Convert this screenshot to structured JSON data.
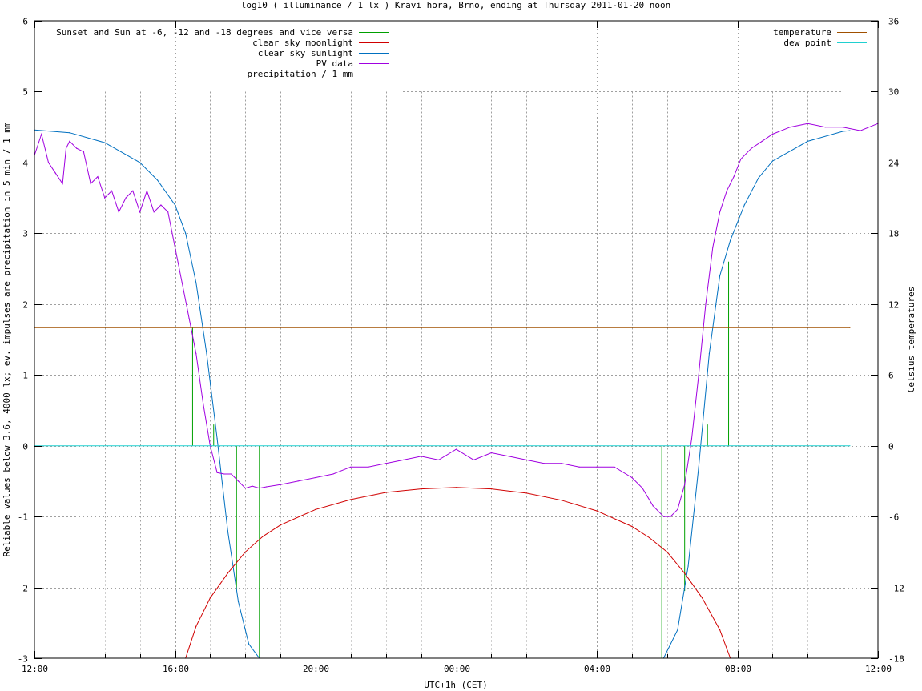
{
  "chart_data": {
    "type": "line",
    "title": "log10 ( illuminance / 1 lx ) Kravi hora, Brno, ending at Thursday 2011-01-20 noon",
    "xlabel": "UTC+1h (CET)",
    "ylabel": "Reliable values below 3.6, 4000 lx; ev. impulses are precipitation in 5 min / 1 mm",
    "y2label": "Celsius temperatures",
    "x_unit": "hours from 2011-01-19 12:00 (CET)",
    "xlim": [
      0,
      24
    ],
    "ylim": [
      -3,
      6
    ],
    "y2lim": [
      -18,
      36
    ],
    "grid": true,
    "x_ticks": [
      {
        "x": 0,
        "label": "12:00"
      },
      {
        "x": 4,
        "label": "16:00"
      },
      {
        "x": 8,
        "label": "20:00"
      },
      {
        "x": 12,
        "label": "00:00"
      },
      {
        "x": 16,
        "label": "04:00"
      },
      {
        "x": 20,
        "label": "08:00"
      },
      {
        "x": 24,
        "label": "12:00"
      }
    ],
    "y_ticks": [
      -3,
      -2,
      -1,
      0,
      1,
      2,
      3,
      4,
      5,
      6
    ],
    "y2_ticks": [
      -18,
      -12,
      -6,
      0,
      6,
      12,
      18,
      24,
      30,
      36
    ],
    "legend_left": {
      "placement": "top-left",
      "entries": [
        {
          "name": "Sunset and Sun at -6, -12 and -18 degrees and vice versa",
          "color": "#00a000"
        },
        {
          "name": "clear sky moonlight",
          "color": "#d00000"
        },
        {
          "name": "clear sky sunlight",
          "color": "#0070c0"
        },
        {
          "name": "PV data",
          "color": "#a000e0"
        },
        {
          "name": "precipitation / 1 mm",
          "color": "#e0a000"
        }
      ]
    },
    "legend_right": {
      "placement": "top-right",
      "entries": [
        {
          "name": "temperature",
          "color": "#a05000"
        },
        {
          "name": "dew point",
          "color": "#20d0d0"
        }
      ]
    },
    "sun_event_impulses": [
      {
        "x": 4.5,
        "y": 1.67
      },
      {
        "x": 5.1,
        "y": 0.3
      },
      {
        "x": 5.75,
        "y": -2.05
      },
      {
        "x": 6.4,
        "y": -3.0
      },
      {
        "x": 17.85,
        "y": -3.0
      },
      {
        "x": 18.5,
        "y": -2.05
      },
      {
        "x": 19.15,
        "y": 0.3
      },
      {
        "x": 19.75,
        "y": 2.6
      }
    ],
    "series": [
      {
        "name": "clear sky sunlight",
        "x": [
          0,
          1,
          2,
          3,
          3.5,
          4,
          4.3,
          4.6,
          4.9,
          5.2,
          5.5,
          5.8,
          6.1,
          6.4,
          17.9,
          18.3,
          18.6,
          18.9,
          19.2,
          19.5,
          19.8,
          20.2,
          20.6,
          21,
          22,
          23,
          23.2
        ],
        "values": [
          4.46,
          4.42,
          4.28,
          4.0,
          3.75,
          3.4,
          3.0,
          2.3,
          1.3,
          0.1,
          -1.2,
          -2.2,
          -2.8,
          -3.0,
          -3.0,
          -2.6,
          -1.7,
          -0.3,
          1.3,
          2.4,
          2.9,
          3.4,
          3.78,
          4.02,
          4.3,
          4.44,
          4.45
        ]
      },
      {
        "name": "clear sky moonlight",
        "x": [
          4.3,
          4.6,
          5.0,
          5.5,
          6.0,
          6.5,
          7,
          8,
          9,
          10,
          11,
          12,
          13,
          14,
          15,
          16,
          17,
          17.5,
          18,
          18.5,
          19,
          19.5,
          19.8
        ],
        "values": [
          -3.0,
          -2.55,
          -2.15,
          -1.8,
          -1.5,
          -1.28,
          -1.12,
          -0.9,
          -0.76,
          -0.66,
          -0.61,
          -0.59,
          -0.61,
          -0.67,
          -0.77,
          -0.92,
          -1.14,
          -1.3,
          -1.5,
          -1.8,
          -2.15,
          -2.6,
          -3.0
        ]
      },
      {
        "name": "PV data",
        "x": [
          0,
          0.2,
          0.4,
          0.6,
          0.8,
          0.9,
          1.0,
          1.2,
          1.4,
          1.6,
          1.8,
          2.0,
          2.2,
          2.4,
          2.6,
          2.8,
          3.0,
          3.2,
          3.4,
          3.6,
          3.8,
          4.0,
          4.2,
          4.4,
          4.6,
          4.8,
          5.0,
          5.2,
          5.4,
          5.6,
          5.8,
          6.0,
          6.2,
          6.4,
          6.6,
          7.0,
          7.5,
          8,
          8.5,
          9,
          9.5,
          10,
          10.5,
          11,
          11.5,
          12,
          12.5,
          13,
          13.5,
          14,
          14.5,
          15,
          15.5,
          16,
          16.5,
          17,
          17.3,
          17.6,
          17.9,
          18.1,
          18.3,
          18.5,
          18.7,
          18.9,
          19.1,
          19.3,
          19.5,
          19.7,
          19.9,
          20.1,
          20.4,
          20.7,
          21,
          21.5,
          22,
          22.5,
          23,
          23.5,
          24
        ],
        "values": [
          4.1,
          4.4,
          4.0,
          3.85,
          3.7,
          4.2,
          4.3,
          4.2,
          4.15,
          3.7,
          3.8,
          3.5,
          3.6,
          3.3,
          3.5,
          3.6,
          3.3,
          3.6,
          3.3,
          3.4,
          3.3,
          2.8,
          2.3,
          1.8,
          1.3,
          0.6,
          0.0,
          -0.38,
          -0.4,
          -0.4,
          -0.5,
          -0.6,
          -0.57,
          -0.6,
          -0.58,
          -0.55,
          -0.5,
          -0.45,
          -0.4,
          -0.3,
          -0.3,
          -0.25,
          -0.2,
          -0.15,
          -0.2,
          -0.05,
          -0.2,
          -0.1,
          -0.15,
          -0.2,
          -0.25,
          -0.25,
          -0.3,
          -0.3,
          -0.3,
          -0.45,
          -0.6,
          -0.85,
          -1.0,
          -1.0,
          -0.9,
          -0.55,
          0.1,
          1.0,
          2.0,
          2.8,
          3.3,
          3.6,
          3.8,
          4.05,
          4.2,
          4.3,
          4.4,
          4.5,
          4.55,
          4.5,
          4.5,
          4.45,
          4.55
        ]
      },
      {
        "name": "temperature",
        "axis": "y2",
        "x": [
          0,
          23.2
        ],
        "values": [
          10.0,
          10.0
        ]
      },
      {
        "name": "dew point",
        "axis": "y2",
        "x": [
          0,
          23.2
        ],
        "values": [
          0,
          0
        ]
      }
    ]
  }
}
